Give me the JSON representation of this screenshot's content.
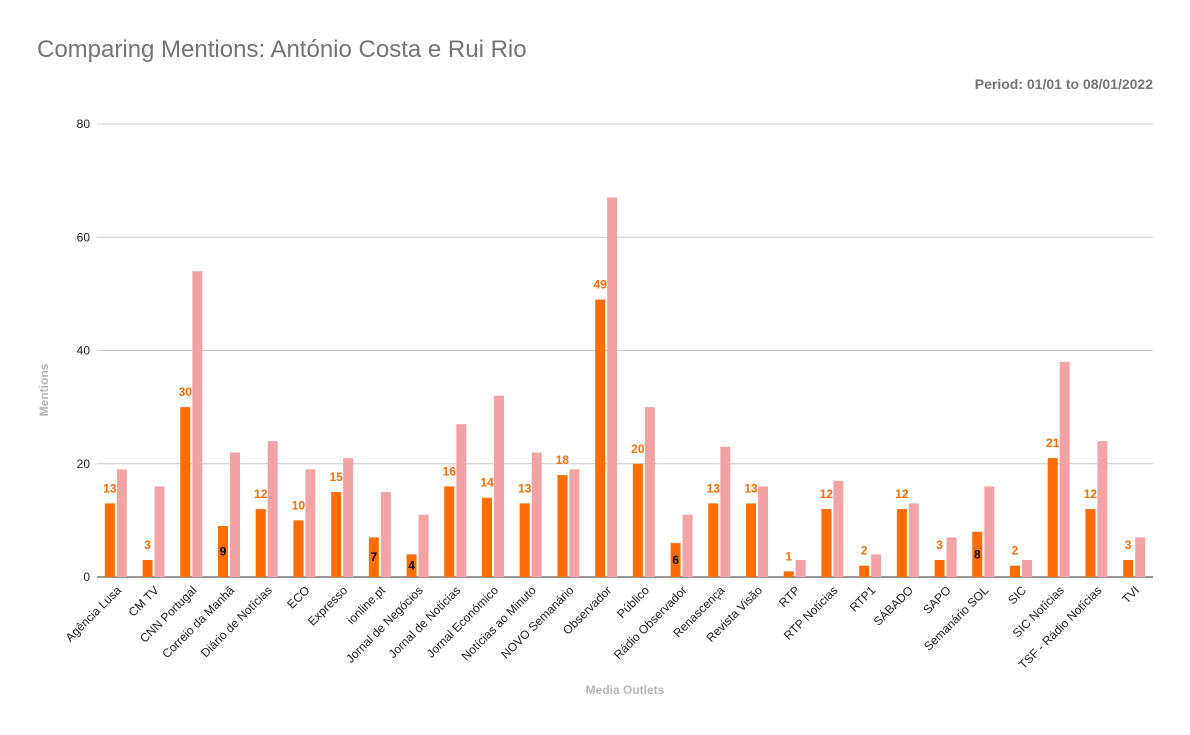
{
  "title": "Comparing Mentions: António Costa e Rui Rio",
  "period": "Period: 01/01 to 08/01/2022",
  "chart_data": {
    "type": "bar",
    "title": "Comparing Mentions: António Costa e Rui Rio",
    "xlabel": "Media Outlets",
    "ylabel": "Mentions",
    "ylim": [
      0,
      80
    ],
    "yticks": [
      "0",
      "20",
      "40",
      "60",
      "80"
    ],
    "grid": true,
    "colors": [
      "#ff6d01",
      "#f4a3a5"
    ],
    "categories": [
      "Agência Lusa",
      "CM TV",
      "CNN Portugal",
      "Correio da Manhã",
      "Diário de Notícias",
      "ECO",
      "Expresso",
      "ionline.pt",
      "Jornal de Negócios",
      "Jornal de Notícias",
      "Jornal Económico",
      "Notícias ao Minuto",
      "NOVO Semanário",
      "Observador",
      "Público",
      "Rádio Observador",
      "Renascença",
      "Revista Visão",
      "RTP",
      "RTP Notícias",
      "RTP1",
      "SÁBADO",
      "SAPO",
      "Semanário SOL",
      "SIC",
      "SIC Notícias",
      "TSF - Rádio Notícias",
      "TVI"
    ],
    "series": [
      {
        "values": [
          13,
          3,
          30,
          9,
          12,
          10,
          15,
          7,
          4,
          16,
          14,
          13,
          18,
          49,
          20,
          6,
          13,
          13,
          1,
          12,
          2,
          12,
          3,
          8,
          2,
          21,
          12,
          3
        ]
      },
      {
        "values": [
          19,
          16,
          54,
          22,
          24,
          19,
          21,
          15,
          11,
          27,
          32,
          22,
          19,
          67,
          30,
          11,
          23,
          16,
          3,
          17,
          4,
          13,
          7,
          16,
          3,
          38,
          24,
          7
        ]
      }
    ],
    "data_labels": [
      "13",
      "3",
      "30",
      "9",
      "12",
      "10",
      "15",
      "7",
      "4",
      "16",
      "14",
      "13",
      "18",
      "49",
      "20",
      "6",
      "13",
      "13",
      "1",
      "12",
      "2",
      "12",
      "3",
      "8",
      "2",
      "21",
      "12",
      "3"
    ]
  }
}
